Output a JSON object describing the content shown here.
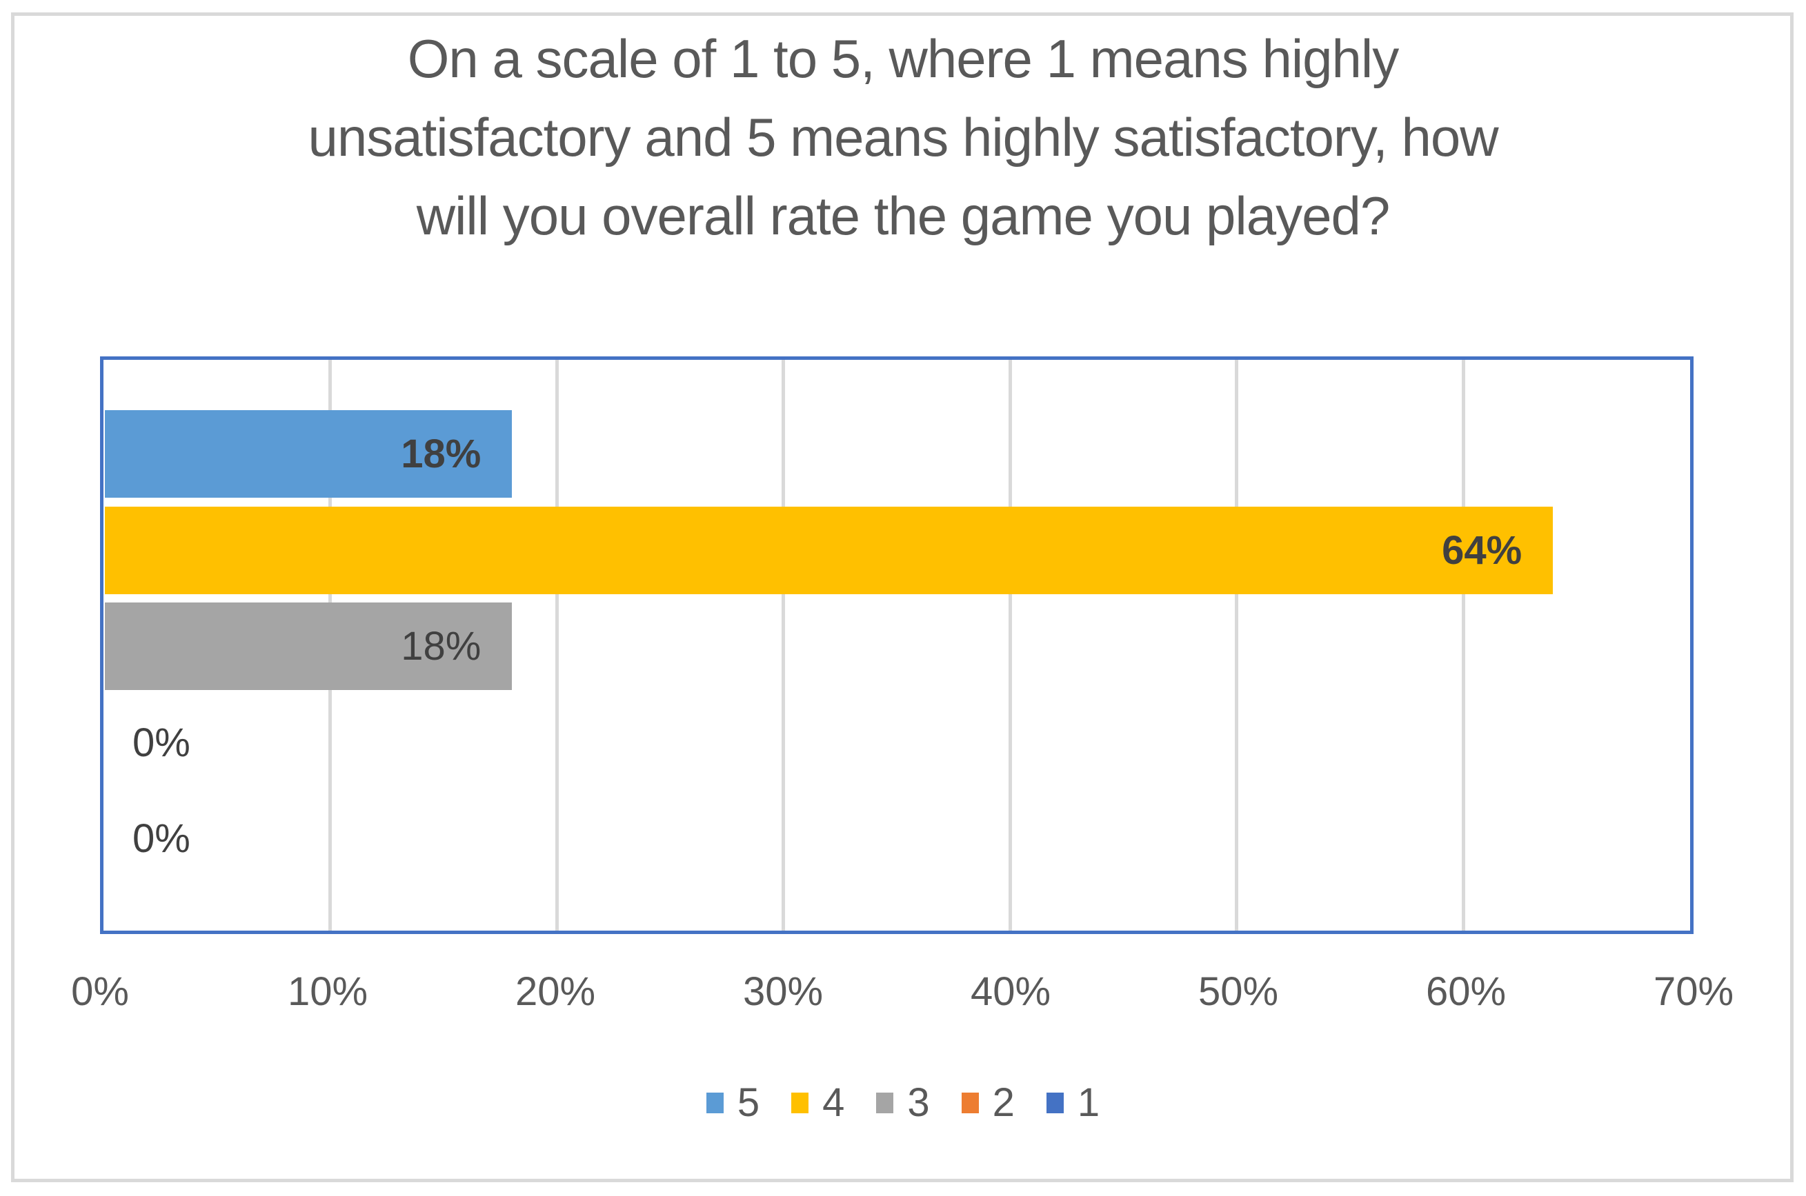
{
  "chart_data": {
    "type": "bar",
    "orientation": "horizontal",
    "title": "On a scale of 1 to 5, where 1 means highly unsatisfactory and 5 means highly satisfactory, how will you overall rate the game you played?",
    "title_lines": [
      "On a scale of 1 to 5, where 1 means highly",
      "unsatisfactory and 5 means highly satisfactory, how",
      "will you overall rate the game you played?"
    ],
    "categories": [
      "5",
      "4",
      "3",
      "2",
      "1"
    ],
    "values": [
      18,
      64,
      18,
      0,
      0
    ],
    "data_labels": [
      "18%",
      "64%",
      "18%",
      "0%",
      "0%"
    ],
    "data_label_bold": [
      true,
      true,
      false,
      false,
      false
    ],
    "bar_colors": [
      "#5B9BD5",
      "#FFC000",
      "#A5A5A5",
      "#ED7D31",
      "#4472C4"
    ],
    "xlim": [
      0,
      70
    ],
    "x_tick_labels": [
      "0%",
      "10%",
      "20%",
      "30%",
      "40%",
      "50%",
      "60%",
      "70%"
    ],
    "grid": "vertical-major-gridlines",
    "legend_position": "bottom",
    "legend": [
      {
        "label": "5",
        "color": "#5B9BD5"
      },
      {
        "label": "4",
        "color": "#FFC000"
      },
      {
        "label": "3",
        "color": "#A5A5A5"
      },
      {
        "label": "2",
        "color": "#ED7D31"
      },
      {
        "label": "1",
        "color": "#4472C4"
      }
    ],
    "colors": {
      "plot_border": "#4472C4",
      "gridline": "#D9D9D9",
      "outer_frame": "#D9D9D9",
      "title_text": "#595959",
      "axis_text": "#595959",
      "data_label_text": "#404040",
      "background": "#FFFFFF"
    }
  }
}
